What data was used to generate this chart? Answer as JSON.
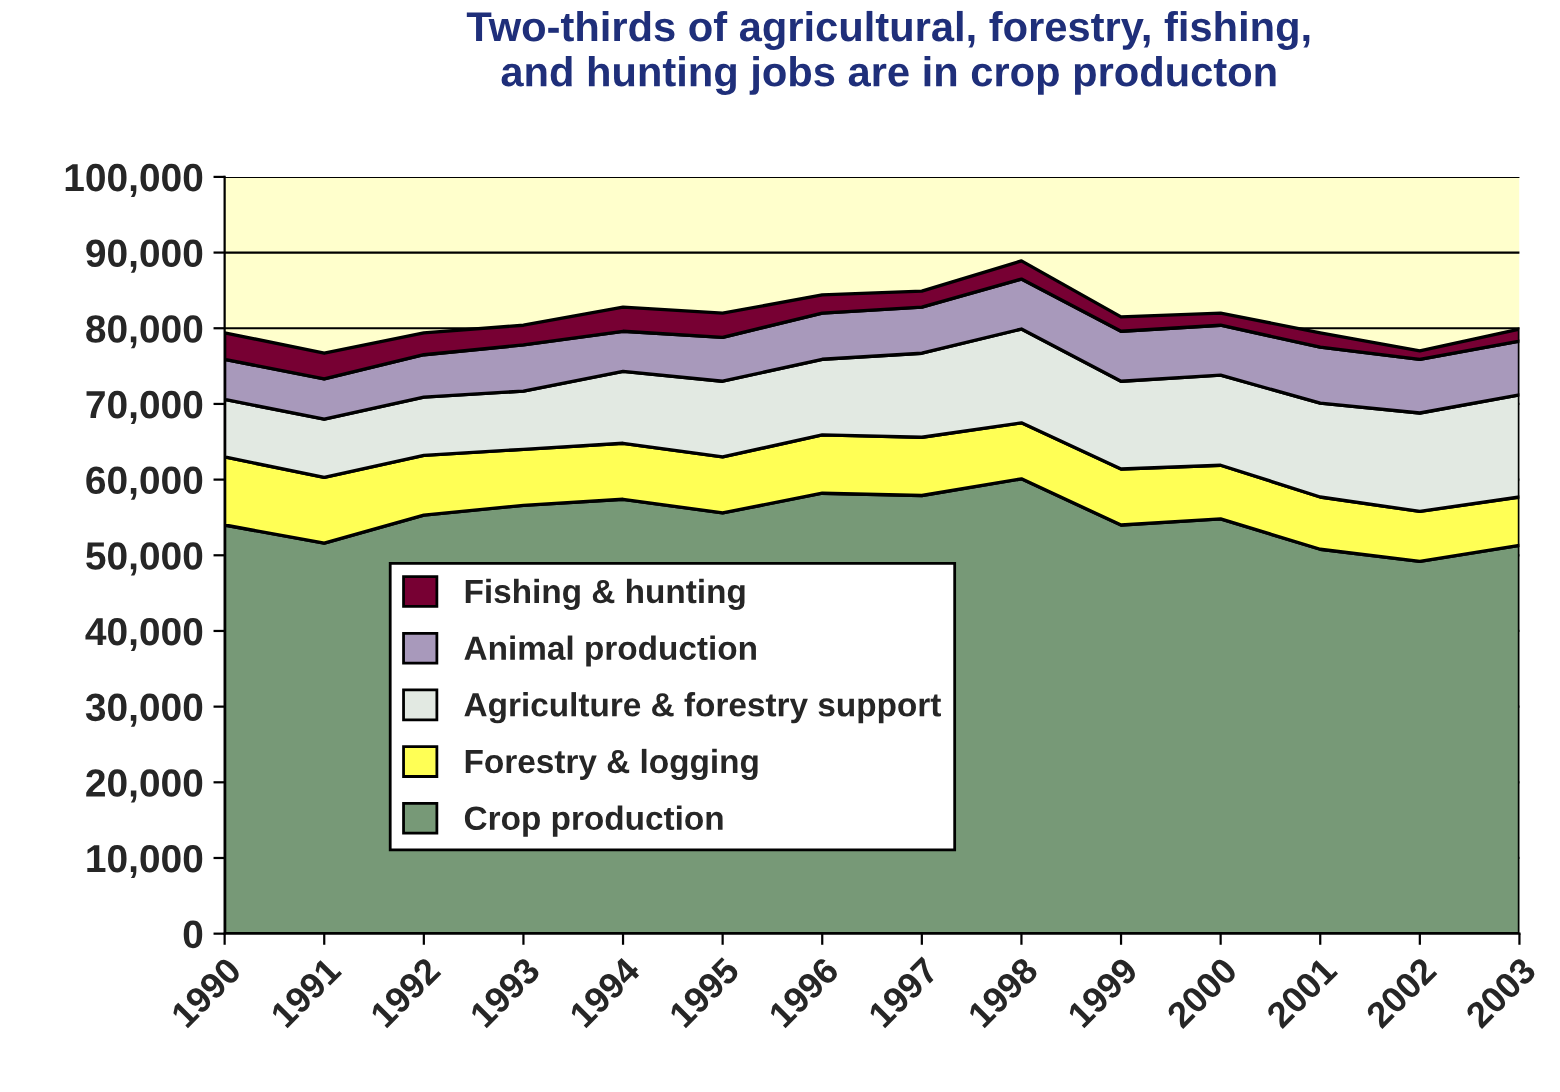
{
  "chart_data": {
    "type": "area",
    "stacked": true,
    "title": "Two-thirds of agricultural, forestry, fishing,\nand hunting jobs are in crop producton",
    "categories": [
      "1990",
      "1991",
      "1992",
      "1993",
      "1994",
      "1995",
      "1996",
      "1997",
      "1998",
      "1999",
      "2000",
      "2001",
      "2002",
      "2003"
    ],
    "series": [
      {
        "name": "Crop production",
        "color": "#779977",
        "values": [
          54000,
          51600,
          55300,
          56600,
          57400,
          55600,
          58200,
          57900,
          60100,
          54000,
          54800,
          50800,
          49200,
          51300
        ]
      },
      {
        "name": "Forestry & logging",
        "color": "#ffff55",
        "values": [
          9000,
          8700,
          7900,
          7400,
          7400,
          7400,
          7700,
          7700,
          7400,
          7400,
          7100,
          6900,
          6600,
          6400
        ]
      },
      {
        "name": "Agriculture & forestry support",
        "color": "#e2e9e2",
        "values": [
          7600,
          7700,
          7700,
          7700,
          9500,
          10000,
          10000,
          11100,
          12400,
          11600,
          11900,
          12400,
          13000,
          13500
        ]
      },
      {
        "name": "Animal production",
        "color": "#a899bb",
        "values": [
          5300,
          5300,
          5600,
          6100,
          5300,
          5800,
          6100,
          6100,
          6600,
          6600,
          6600,
          7400,
          7100,
          7100
        ]
      },
      {
        "name": "Fishing & hunting",
        "color": "#770033",
        "values": [
          3500,
          3400,
          2900,
          2600,
          3200,
          3200,
          2400,
          2100,
          2400,
          1900,
          1600,
          1900,
          1100,
          1600
        ]
      }
    ],
    "ylim": [
      0,
      100000
    ],
    "yticks": [
      {
        "value": 0,
        "label": "0"
      },
      {
        "value": 10000,
        "label": "10,000"
      },
      {
        "value": 20000,
        "label": "20,000"
      },
      {
        "value": 30000,
        "label": "30,000"
      },
      {
        "value": 40000,
        "label": "40,000"
      },
      {
        "value": 50000,
        "label": "50,000"
      },
      {
        "value": 60000,
        "label": "60,000"
      },
      {
        "value": 70000,
        "label": "70,000"
      },
      {
        "value": 80000,
        "label": "80,000"
      },
      {
        "value": 90000,
        "label": "90,000"
      },
      {
        "value": 100000,
        "label": "100,000"
      }
    ],
    "bands": [
      {
        "axis": "y",
        "from": 76000,
        "to": 100000,
        "color": "#ffffcc"
      }
    ],
    "grid": "y",
    "legend": "center left"
  }
}
